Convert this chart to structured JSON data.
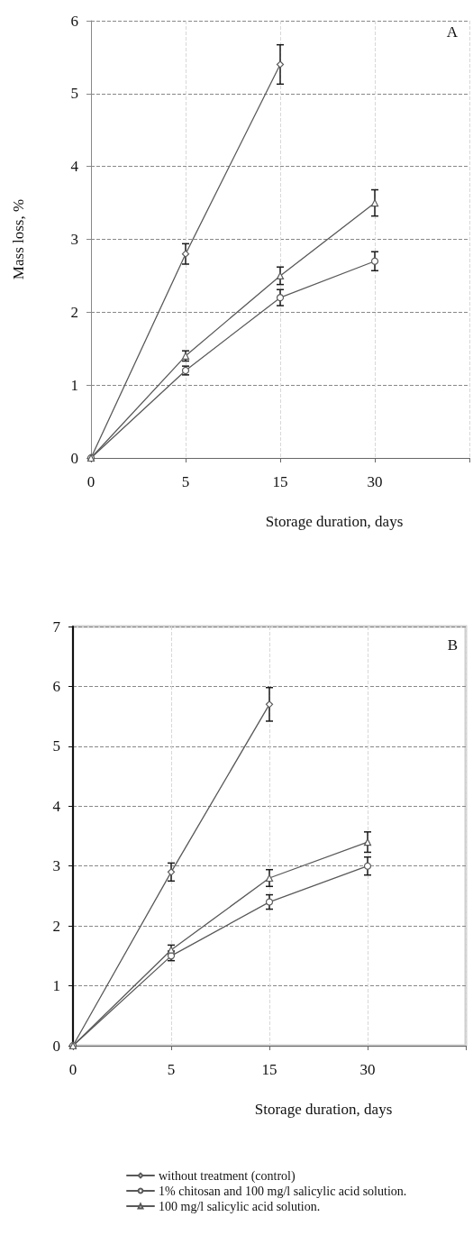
{
  "chart_data": [
    {
      "type": "line",
      "title": "A",
      "xlabel": "Storage duration, days",
      "ylabel": "Mass loss, %",
      "categories": [
        "0",
        "5",
        "15",
        "30",
        null
      ],
      "ylim": [
        0,
        6
      ],
      "yticks": [
        0,
        1,
        2,
        3,
        4,
        5,
        6
      ],
      "grid": true,
      "legend": false,
      "series": [
        {
          "color": "#595959",
          "marker": "diamond",
          "values": [
            0,
            2.8,
            5.4,
            null,
            null
          ],
          "errors": [
            null,
            0.14,
            0.27,
            null,
            null
          ]
        },
        {
          "color": "#595959",
          "marker": "circle",
          "values": [
            0,
            1.2,
            2.2,
            2.7,
            null
          ],
          "errors": [
            null,
            0.06,
            0.11,
            0.13,
            null
          ]
        },
        {
          "color": "#595959",
          "marker": "triangle",
          "values": [
            0,
            1.4,
            2.5,
            3.5,
            null
          ],
          "errors": [
            null,
            0.07,
            0.12,
            0.18,
            null
          ]
        }
      ]
    },
    {
      "type": "line",
      "title": "B",
      "xlabel": "Storage duration, days",
      "categories": [
        "0",
        "5",
        "15",
        "30",
        null
      ],
      "ylim": [
        0,
        7
      ],
      "yticks": [
        0,
        1,
        2,
        3,
        4,
        5,
        6,
        7
      ],
      "grid": true,
      "legend": "bottom",
      "series": [
        {
          "name": "without treatment (control)",
          "color": "#595959",
          "marker": "diamond",
          "values": [
            0,
            2.9,
            5.7,
            null,
            null
          ],
          "errors": [
            null,
            0.15,
            0.28,
            null,
            null
          ]
        },
        {
          "name": "1% chitosan and 100 mg/l salicylic acid solution.",
          "color": "#595959",
          "marker": "circle",
          "values": [
            0,
            1.5,
            2.4,
            3.0,
            null
          ],
          "errors": [
            null,
            0.08,
            0.12,
            0.15,
            null
          ]
        },
        {
          "name": "100 mg/l salicylic acid solution.",
          "color": "#595959",
          "marker": "triangle",
          "values": [
            0,
            1.6,
            2.8,
            3.4,
            null
          ],
          "errors": [
            null,
            0.08,
            0.14,
            0.17,
            null
          ]
        }
      ]
    }
  ]
}
